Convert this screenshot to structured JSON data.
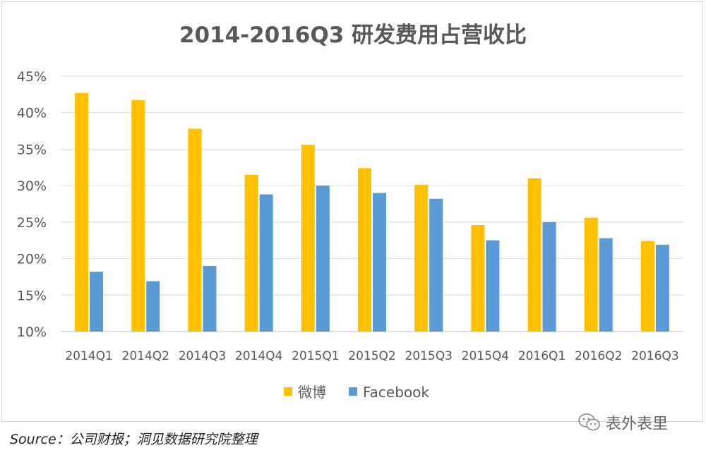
{
  "chart_data": {
    "type": "bar",
    "title": "2014-2016Q3 研发费用占营收比",
    "categories": [
      "2014Q1",
      "2014Q2",
      "2014Q3",
      "2014Q4",
      "2015Q1",
      "2015Q2",
      "2015Q3",
      "2015Q4",
      "2016Q1",
      "2016Q2",
      "2016Q3"
    ],
    "series": [
      {
        "name": "微博",
        "color": "#FFC000",
        "values": [
          42.7,
          41.7,
          37.8,
          31.5,
          35.6,
          32.4,
          30.1,
          24.6,
          31.0,
          25.6,
          22.4
        ]
      },
      {
        "name": "Facebook",
        "color": "#5B9BD5",
        "values": [
          18.2,
          16.9,
          19.0,
          28.8,
          30.0,
          29.0,
          28.2,
          22.5,
          25.0,
          22.8,
          21.9
        ]
      }
    ],
    "ylim": [
      10,
      45
    ],
    "yticks": [
      "10%",
      "15%",
      "20%",
      "25%",
      "30%",
      "35%",
      "40%",
      "45%"
    ],
    "ytick_values": [
      10,
      15,
      20,
      25,
      30,
      35,
      40,
      45
    ],
    "grid": true,
    "legend": "bottom"
  },
  "source": "Source：公司财报；洞见数据研究院整理",
  "watermark": {
    "text": "表外表里",
    "icon": "wechat-icon"
  }
}
